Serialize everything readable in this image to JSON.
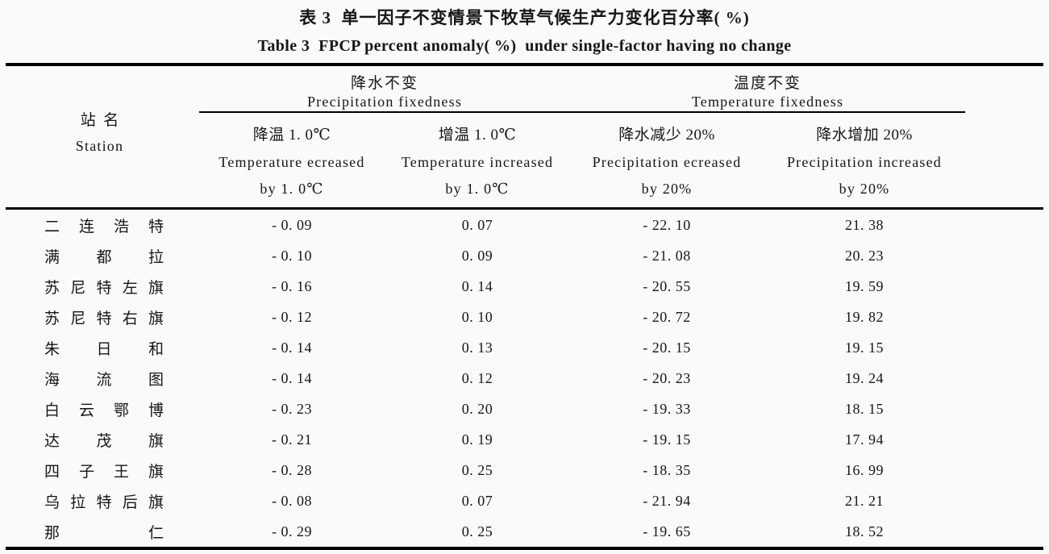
{
  "titles": {
    "zh": "表 3  单一因子不变情景下牧草气候生产力变化百分率( %)",
    "en": "Table 3  FPCP percent anomaly( %)  under single-factor having no change"
  },
  "header": {
    "station": {
      "zh": "站  名",
      "en": "Station"
    },
    "groups": [
      {
        "zh": "降水不变",
        "en": "Precipitation fixedness",
        "columns": [
          {
            "zh": "降温 1. 0℃",
            "en1": "Temperature ecreased",
            "en2": "by 1. 0℃"
          },
          {
            "zh": "增温 1. 0℃",
            "en1": "Temperature increased",
            "en2": "by 1. 0℃"
          }
        ]
      },
      {
        "zh": "温度不变",
        "en": "Temperature fixedness",
        "columns": [
          {
            "zh": "降水减少 20%",
            "en1": "Precipitation ecreased",
            "en2": "by 20%"
          },
          {
            "zh": "降水增加 20%",
            "en1": "Precipitation increased",
            "en2": "by 20%"
          }
        ]
      }
    ]
  },
  "rows": [
    {
      "station": "二 连 浩 特",
      "values": [
        "- 0. 09",
        "0. 07",
        "- 22. 10",
        "21. 38"
      ]
    },
    {
      "station": "满 都 拉",
      "values": [
        "- 0. 10",
        "0. 09",
        "- 21. 08",
        "20. 23"
      ]
    },
    {
      "station": "苏 尼 特 左 旗",
      "values": [
        "- 0. 16",
        "0. 14",
        "- 20. 55",
        "19. 59"
      ]
    },
    {
      "station": "苏 尼 特 右 旗",
      "values": [
        "- 0. 12",
        "0. 10",
        "- 20. 72",
        "19. 82"
      ]
    },
    {
      "station": "朱 日 和",
      "values": [
        "- 0. 14",
        "0. 13",
        "- 20. 15",
        "19. 15"
      ]
    },
    {
      "station": "海 流 图",
      "values": [
        "- 0. 14",
        "0. 12",
        "- 20. 23",
        "19. 24"
      ]
    },
    {
      "station": "白 云 鄂 博",
      "values": [
        "- 0. 23",
        "0. 20",
        "- 19. 33",
        "18. 15"
      ]
    },
    {
      "station": "达 茂 旗",
      "values": [
        "- 0. 21",
        "0. 19",
        "- 19. 15",
        "17. 94"
      ]
    },
    {
      "station": "四 子 王 旗",
      "values": [
        "- 0. 28",
        "0. 25",
        "- 18. 35",
        "16. 99"
      ]
    },
    {
      "station": "乌 拉 特 后 旗",
      "values": [
        "- 0. 08",
        "0. 07",
        "- 21. 94",
        "21. 21"
      ]
    },
    {
      "station": "那 仁",
      "values": [
        "- 0. 29",
        "0. 25",
        "- 19. 65",
        "18. 52"
      ]
    }
  ]
}
